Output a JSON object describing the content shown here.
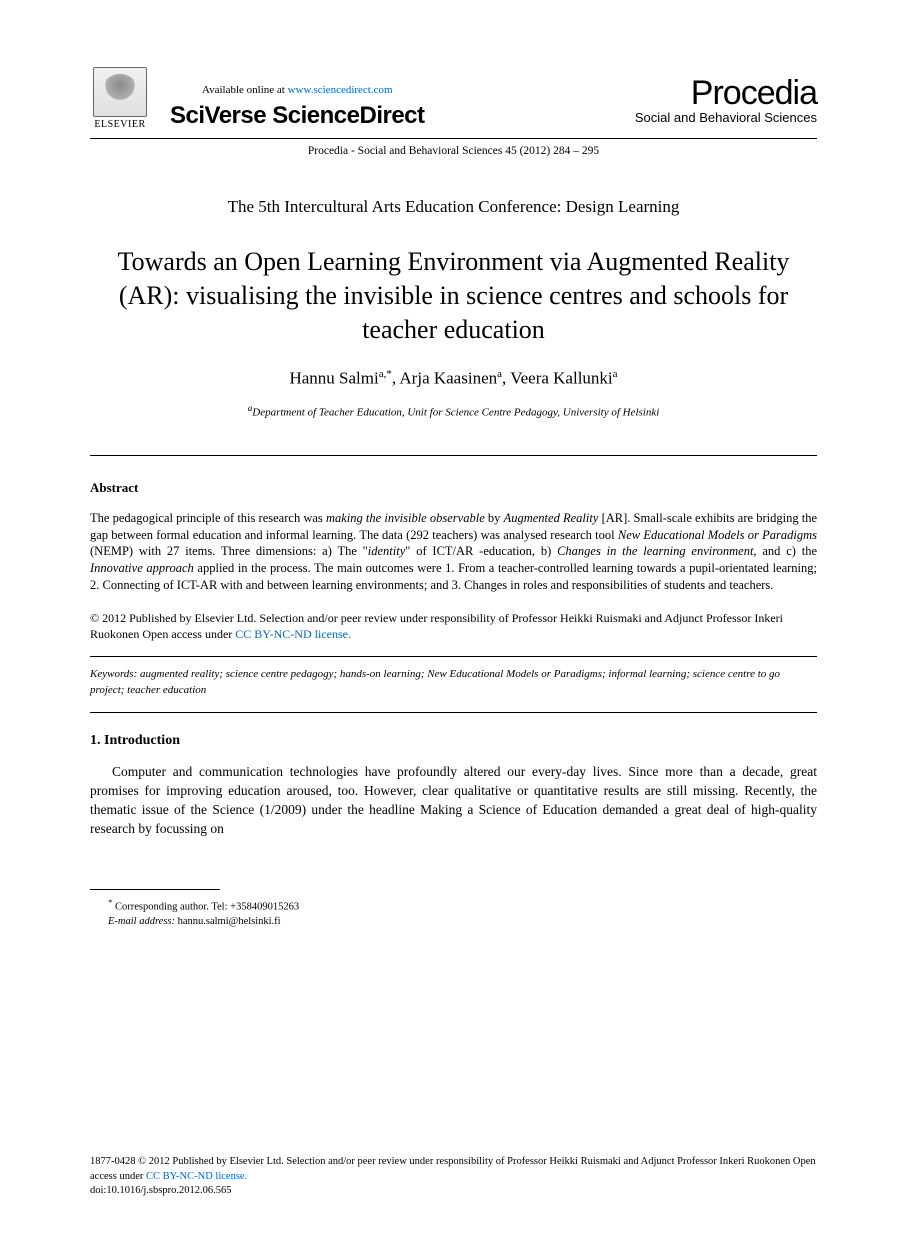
{
  "header": {
    "available_prefix": "Available online at ",
    "available_url": "www.sciencedirect.com",
    "sciverse": "SciVerse ",
    "sciencedirect": "ScienceDirect",
    "elsevier_label": "ELSEVIER",
    "procedia_word": "Procedia",
    "procedia_sub": "Social and Behavioral Sciences",
    "citation": "Procedia - Social and Behavioral Sciences 45 (2012) 284 – 295"
  },
  "conference": "The 5th Intercultural Arts Education Conference: Design Learning",
  "title": "Towards an Open Learning Environment via Augmented Reality (AR): visualising the invisible in science centres and schools for teacher education",
  "authors_html": "Hannu Salmi",
  "author1": "Hannu Salmi",
  "author1_sup": "a,*",
  "author2": "Arja Kaasinen",
  "author2_sup": "a",
  "author3": "Veera Kallunki",
  "author3_sup": "a",
  "affiliation_sup": "a",
  "affiliation": "Department of Teacher Education, Unit for Science Centre Pedagogy, University of Helsinki",
  "abstract": {
    "heading": "Abstract",
    "text_parts": {
      "p1": "The pedagogical principle of this research was ",
      "e1": "making the invisible observable",
      "p2": " by ",
      "e2": "Augmented Reality",
      "p3": " [AR]. Small-scale exhibits are bridging the gap between formal education and informal learning. The data (292 teachers)  was analysed research tool  ",
      "e3": "New Educational Models or Paradigms",
      "p4": " (NEMP) with 27 items. Three dimensions: a) The \"",
      "e4": "identity",
      "p5": "\" of ICT/AR -education, b) ",
      "e5": "Changes in the learning environment,",
      "p6": " and c) the ",
      "e6": "Innovative approach",
      "p7": " applied in the process. The main outcomes were 1. From a teacher-controlled learning towards a pupil-orientated learning; 2. Connecting of ICT-AR with and between learning environments; and 3. Changes in roles and responsibilities of students and teachers."
    }
  },
  "copyright": {
    "line1": "© 2012 Published by Elsevier Ltd. Selection and/or peer review under responsibility of Professor Heikki Ruismaki and Adjunct Professor Inkeri Ruokonen  Open access under ",
    "license_text": "CC BY-NC-ND license.",
    "license_url": "http://creativecommons.org/licenses/by-nc-nd/3.0/"
  },
  "keywords": {
    "label": "Keywords",
    "text": ": augmented reality; science centre pedagogy; hands-on learning; New Educational Models or Paradigms; informal learning; science centre to go project; teacher education"
  },
  "section1": {
    "heading": "1. Introduction",
    "para": "Computer and communication technologies have profoundly altered our every-day lives. Since more than a decade, great promises for improving education aroused, too. However, clear qualitative or quantitative results are still missing. Recently, the thematic issue of the Science (1/2009) under the headline Making a Science of Education demanded a great deal of high-quality research by focussing on"
  },
  "footnote": {
    "star": "*",
    "corresponding": " Corresponding author. Tel: +358409015263",
    "email_label": "E-mail address:",
    "email": " hannu.salmi@helsinki.fi"
  },
  "footer": {
    "line1": "1877-0428 © 2012 Published by Elsevier Ltd. Selection and/or peer review under responsibility of Professor Heikki Ruismaki and Adjunct Professor Inkeri Ruokonen  Open access under ",
    "license_text": "CC BY-NC-ND license.",
    "doi": "doi:10.1016/j.sbspro.2012.06.565"
  },
  "colors": {
    "text": "#000000",
    "link": "#0066cc",
    "background": "#ffffff",
    "rule": "#000000"
  },
  "fonts": {
    "body": "Times New Roman",
    "logos": "Arial",
    "procedia_sub": "Comic Sans MS"
  }
}
